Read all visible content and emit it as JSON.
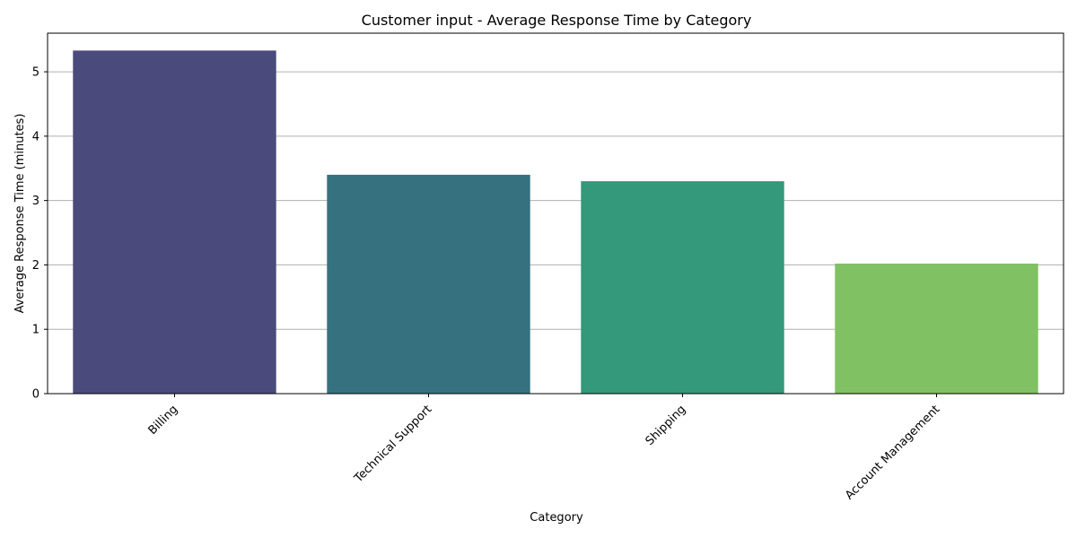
{
  "chart_data": {
    "type": "bar",
    "title": "Customer input - Average Response Time by Category",
    "xlabel": "Category",
    "ylabel": "Average Response Time (minutes)",
    "categories": [
      "Billing",
      "Technical Support",
      "Shipping",
      "Account Management"
    ],
    "values": [
      5.33,
      3.4,
      3.3,
      2.02
    ],
    "colors": [
      "#4a4a7c",
      "#36717f",
      "#34987a",
      "#80c163"
    ],
    "ylim": [
      0,
      5.6
    ],
    "yticks": [
      0,
      1,
      2,
      3,
      4,
      5
    ],
    "grid": "y-axis",
    "legend": "none"
  }
}
